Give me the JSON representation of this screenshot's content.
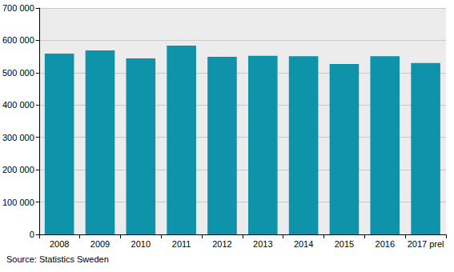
{
  "chart_data": {
    "type": "bar",
    "categories": [
      "2008",
      "2009",
      "2010",
      "2011",
      "2012",
      "2013",
      "2014",
      "2015",
      "2016",
      "2017 prel"
    ],
    "values": [
      559000,
      569000,
      544000,
      584000,
      549000,
      552000,
      551000,
      527000,
      551000,
      530000
    ],
    "color": "#0e93ab",
    "ylim": [
      0,
      700000
    ],
    "yticks": [
      0,
      {
        "value": 100000,
        "label": "100 000"
      },
      {
        "value": 200000,
        "label": "200 000"
      },
      {
        "value": 300000,
        "label": "300 000"
      },
      {
        "value": 400000,
        "label": "400 000"
      },
      {
        "value": 500000,
        "label": "500 000"
      },
      {
        "value": 600000,
        "label": "600 000"
      },
      {
        "value": 700000,
        "label": "700 000"
      }
    ],
    "grid": true,
    "source": "Source: Statistics Sweden"
  }
}
